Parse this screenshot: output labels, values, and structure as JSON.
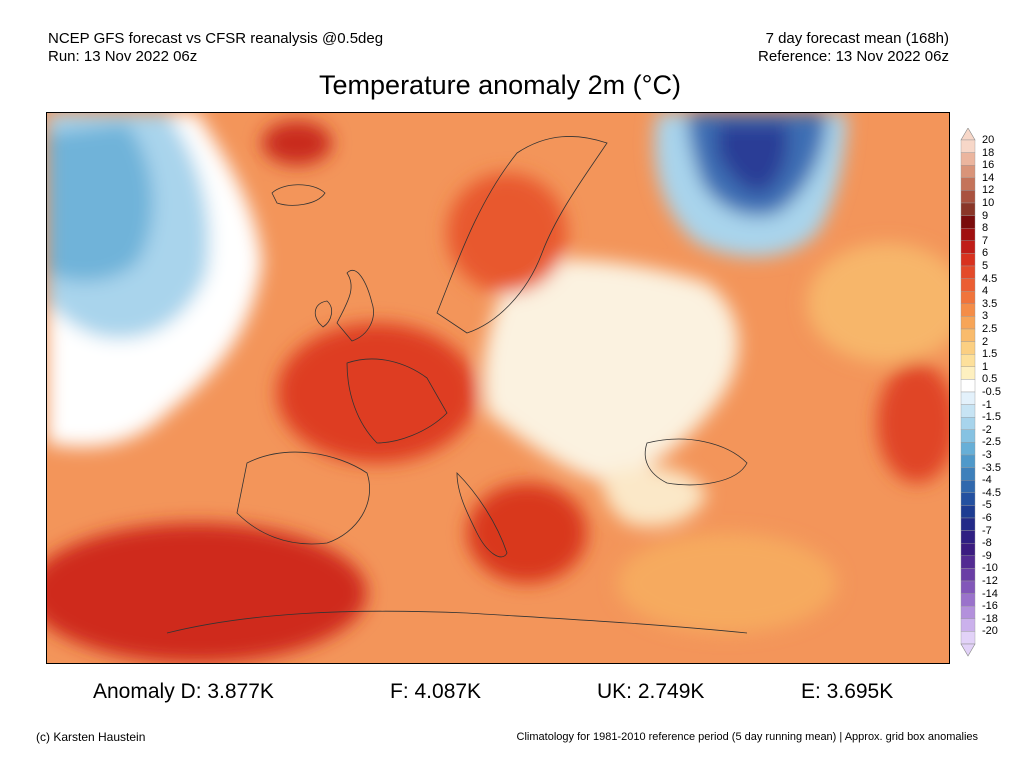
{
  "header": {
    "left_line1": "NCEP GFS forecast vs CFSR reanalysis @0.5deg",
    "left_line2": "Run: 13 Nov 2022 06z",
    "right_line1": "7 day forecast mean (168h)",
    "right_line2": "Reference: 13 Nov 2022 06z"
  },
  "title": "Temperature anomaly 2m (°C)",
  "colorbar": {
    "labels": [
      "20",
      "18",
      "16",
      "14",
      "12",
      "10",
      "9",
      "8",
      "7",
      "6",
      "5",
      "4.5",
      "4",
      "3.5",
      "3",
      "2.5",
      "2",
      "1.5",
      "1",
      "0.5",
      "-0.5",
      "-1",
      "-1.5",
      "-2",
      "-2.5",
      "-3",
      "-3.5",
      "-4",
      "-4.5",
      "-5",
      "-6",
      "-7",
      "-8",
      "-9",
      "-10",
      "-12",
      "-14",
      "-16",
      "-18",
      "-20"
    ],
    "colors": [
      "#f7d7c8",
      "#ebb59e",
      "#d99479",
      "#c4735a",
      "#a9523f",
      "#8a3628",
      "#7a0c0c",
      "#a01010",
      "#c01d18",
      "#d8321f",
      "#e34a2a",
      "#eb5e33",
      "#f0743c",
      "#f48d48",
      "#f7a558",
      "#f9bb6c",
      "#fbcf82",
      "#fde09b",
      "#fef0c0",
      "#ffffff",
      "#e3f1fb",
      "#c7e4f4",
      "#a7d4ec",
      "#86c2e2",
      "#67afd7",
      "#4f99ca",
      "#3e80bb",
      "#3068ad",
      "#2451a0",
      "#1d3c92",
      "#232a88",
      "#2f1f82",
      "#3b1c80",
      "#532b92",
      "#6a3ea5",
      "#8257b9",
      "#9a72cb",
      "#b390dc",
      "#cbb1ec",
      "#e2d2f8"
    ]
  },
  "stats": {
    "d": "Anomaly D: 3.877K",
    "f": "F: 4.087K",
    "uk": "UK: 2.749K",
    "e": "E: 3.695K"
  },
  "footer": {
    "left": "(c) Karsten Haustein",
    "right": "Climatology for 1981-2010 reference period (5 day running mean) | Approx. grid box anomalies"
  }
}
